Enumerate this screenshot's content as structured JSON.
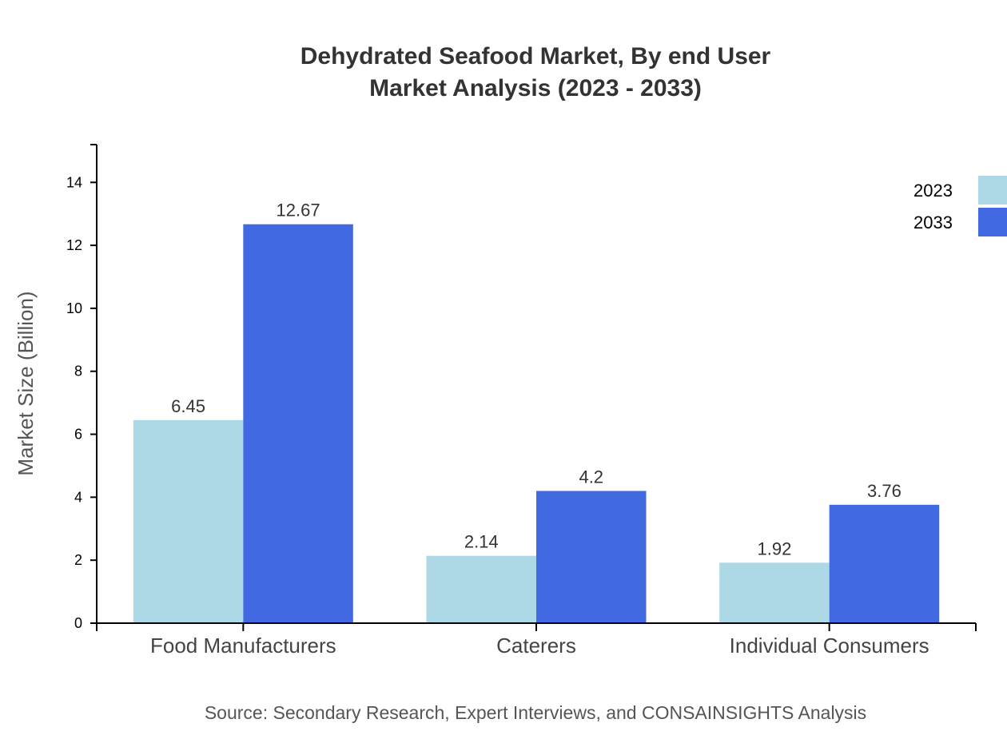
{
  "chart_data": {
    "type": "bar",
    "title": "Dehydrated Seafood Market, By end User",
    "subtitle": "Market Analysis (2023 - 2033)",
    "xlabel": "",
    "ylabel": "Market Size (Billion)",
    "categories": [
      "Food Manufacturers",
      "Caterers",
      "Individual Consumers"
    ],
    "series": [
      {
        "name": "2023",
        "values": [
          6.45,
          2.14,
          1.92
        ],
        "color": "#ADD8E6"
      },
      {
        "name": "2033",
        "values": [
          12.67,
          4.2,
          3.76
        ],
        "color": "#4169E1"
      }
    ],
    "yticks": [
      0,
      2,
      4,
      6,
      8,
      10,
      12,
      14
    ],
    "ylim": [
      0,
      15.2
    ],
    "grid": false,
    "legend_position": "top-right",
    "source": "Source: Secondary Research, Expert Interviews, and CONSAINSIGHTS Analysis"
  }
}
